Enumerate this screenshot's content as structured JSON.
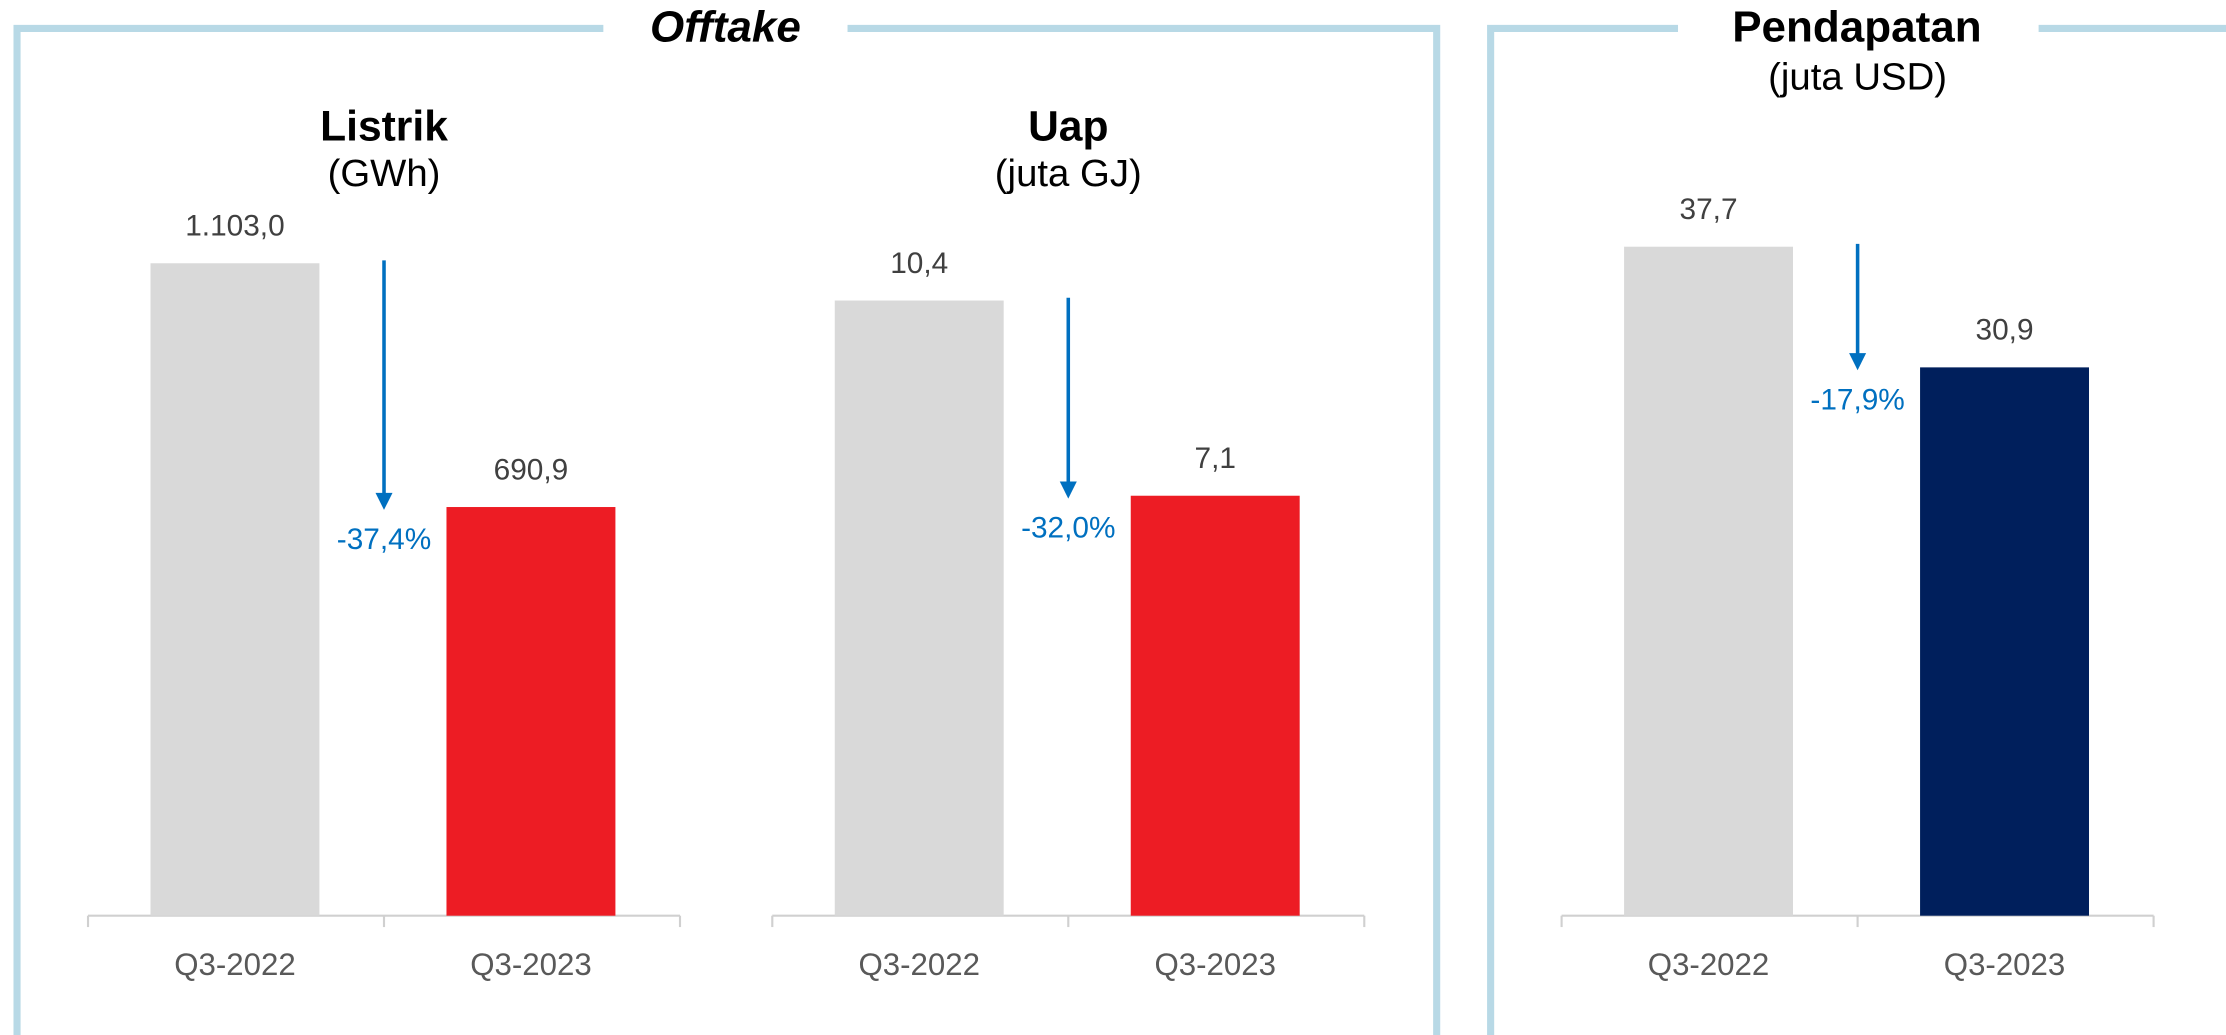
{
  "panels": [
    {
      "title": "Offtake"
    },
    {
      "title": "Pendapatan"
    }
  ],
  "chart_data": [
    {
      "type": "bar",
      "title": "Listrik",
      "subtitle": "(GWh)",
      "categories": [
        "Q3-2022",
        "Q3-2023"
      ],
      "values": [
        1103.0,
        690.9
      ],
      "value_labels": [
        "1.103,0",
        "690,9"
      ],
      "colors": [
        "#d9d9d9",
        "#ed1c24"
      ],
      "annotation": "-37,4%",
      "ylim": [
        0,
        1200
      ]
    },
    {
      "type": "bar",
      "title": "Uap",
      "subtitle": "(juta GJ)",
      "categories": [
        "Q3-2022",
        "Q3-2023"
      ],
      "values": [
        10.4,
        7.1
      ],
      "value_labels": [
        "10,4",
        "7,1"
      ],
      "colors": [
        "#d9d9d9",
        "#ed1c24"
      ],
      "annotation": "-32,0%",
      "ylim": [
        0,
        12
      ]
    },
    {
      "type": "bar",
      "subtitle": "(juta USD)",
      "categories": [
        "Q3-2022",
        "Q3-2023"
      ],
      "values": [
        37.7,
        30.9
      ],
      "value_labels": [
        "37,7",
        "30,9"
      ],
      "colors": [
        "#d9d9d9",
        "#001f5c"
      ],
      "annotation": "-17,9%",
      "ylim": [
        0,
        40
      ]
    }
  ]
}
